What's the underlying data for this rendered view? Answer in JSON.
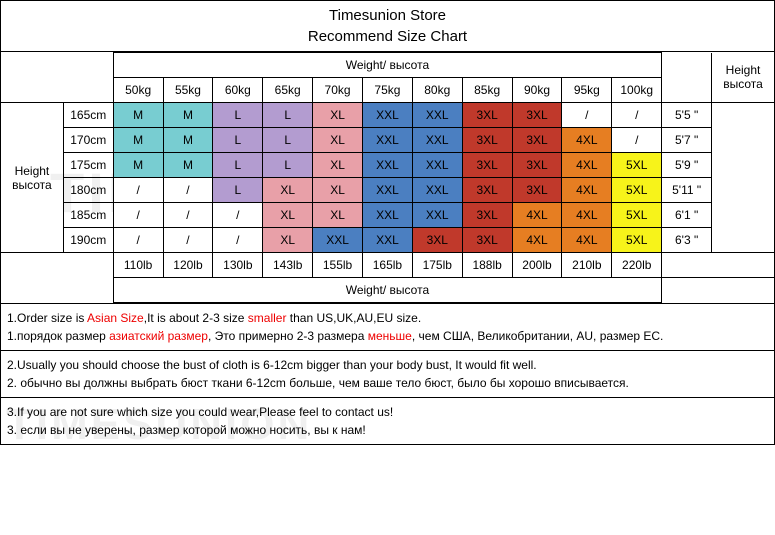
{
  "title_line1": "Timesunion Store",
  "title_line2": "Recommend Size Chart",
  "weight_header": "Weight/ высота",
  "height_label_en": "Height",
  "height_label_ru": "высота",
  "weights_kg": [
    "50kg",
    "55kg",
    "60kg",
    "65kg",
    "70kg",
    "75kg",
    "80kg",
    "85kg",
    "90kg",
    "95kg",
    "100kg"
  ],
  "weights_lb": [
    "110lb",
    "120lb",
    "130lb",
    "143lb",
    "155lb",
    "165lb",
    "175lb",
    "188lb",
    "200lb",
    "210lb",
    "220lb"
  ],
  "heights": [
    {
      "cm": "165cm",
      "ft": "5'5 \"",
      "sizes": [
        "M",
        "M",
        "L",
        "L",
        "XL",
        "XXL",
        "XXL",
        "3XL",
        "3XL",
        "/",
        "/"
      ]
    },
    {
      "cm": "170cm",
      "ft": "5'7 \"",
      "sizes": [
        "M",
        "M",
        "L",
        "L",
        "XL",
        "XXL",
        "XXL",
        "3XL",
        "3XL",
        "4XL",
        "/"
      ]
    },
    {
      "cm": "175cm",
      "ft": "5'9 \"",
      "sizes": [
        "M",
        "M",
        "L",
        "L",
        "XL",
        "XXL",
        "XXL",
        "3XL",
        "3XL",
        "4XL",
        "5XL"
      ]
    },
    {
      "cm": "180cm",
      "ft": "5'11 \"",
      "sizes": [
        "/",
        "/",
        "L",
        "XL",
        "XL",
        "XXL",
        "XXL",
        "3XL",
        "3XL",
        "4XL",
        "5XL"
      ]
    },
    {
      "cm": "185cm",
      "ft": "6'1 \"",
      "sizes": [
        "/",
        "/",
        "/",
        "XL",
        "XL",
        "XXL",
        "XXL",
        "3XL",
        "4XL",
        "4XL",
        "5XL"
      ]
    },
    {
      "cm": "190cm",
      "ft": "6'3 \"",
      "sizes": [
        "/",
        "/",
        "/",
        "XL",
        "XXL",
        "XXL",
        "3XL",
        "3XL",
        "4XL",
        "4XL",
        "5XL"
      ]
    }
  ],
  "size_colors": {
    "M": "#78cdd1",
    "L": "#b39cd0",
    "XL": "#e8a0a8",
    "XXL": "#4b7fc1",
    "3XL": "#c0392b",
    "4XL": "#e67e22",
    "5XL": "#f7f31a",
    "/": "#ffffff"
  },
  "notes": {
    "n1a": "1.Order size is ",
    "n1b": "Asian Size",
    "n1c": ",It is about 2-3 size ",
    "n1d": "smaller",
    "n1e": " than US,UK,AU,EU size.",
    "n1ra": "1.порядок размер ",
    "n1rb": "азиатский размер",
    "n1rc": ", Это примерно 2-3 размера ",
    "n1rd": "меньше",
    "n1re": ", чем США, Великобритании, AU, размер EC.",
    "n2a": "2.Usually you should choose the bust of cloth is 6-12cm bigger than your body bust, It would fit well.",
    "n2r": "2. обычно вы должны выбрать бюст ткани 6-12cm больше, чем ваше тело бюст, было бы хорошо вписывается.",
    "n3a": "3.If you are not sure which size you could wear,Please feel to contact us!",
    "n3r": "3. если вы не уверены, размер которой можно носить, вы к нам!"
  },
  "watermark": "TIMESUNION"
}
